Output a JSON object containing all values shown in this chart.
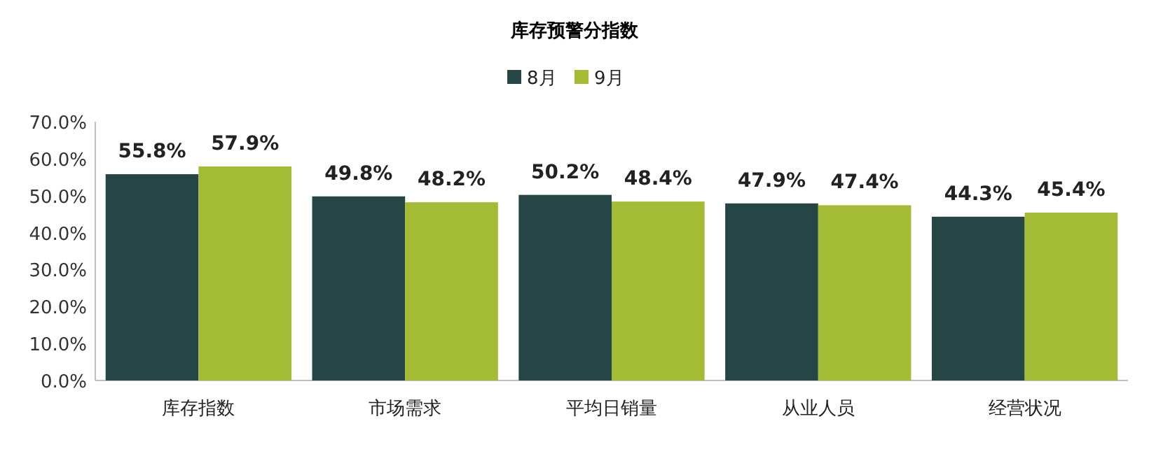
{
  "chart_data": {
    "type": "bar",
    "title": "库存预警分指数",
    "categories": [
      "库存指数",
      "市场需求",
      "平均日销量",
      "从业人员",
      "经营状况"
    ],
    "series": [
      {
        "name": "8月",
        "color": "#264645",
        "values": [
          55.8,
          49.8,
          50.2,
          47.9,
          44.3
        ],
        "value_labels": [
          "55.8%",
          "49.8%",
          "50.2%",
          "47.9%",
          "44.3%"
        ]
      },
      {
        "name": "9月",
        "color": "#a4bc35",
        "values": [
          57.9,
          48.2,
          48.4,
          47.4,
          45.4
        ],
        "value_labels": [
          "57.9%",
          "48.2%",
          "48.4%",
          "47.4%",
          "45.4%"
        ]
      }
    ],
    "ylim": [
      0,
      70
    ],
    "yticks": [
      {
        "value": 0,
        "label": "0.0%"
      },
      {
        "value": 10,
        "label": "10.0%"
      },
      {
        "value": 20,
        "label": "20.0%"
      },
      {
        "value": 30,
        "label": "30.0%"
      },
      {
        "value": 40,
        "label": "40.0%"
      },
      {
        "value": 50,
        "label": "50.0%"
      },
      {
        "value": 60,
        "label": "60.0%"
      },
      {
        "value": 70,
        "label": "70.0%"
      }
    ],
    "legend": "top"
  }
}
